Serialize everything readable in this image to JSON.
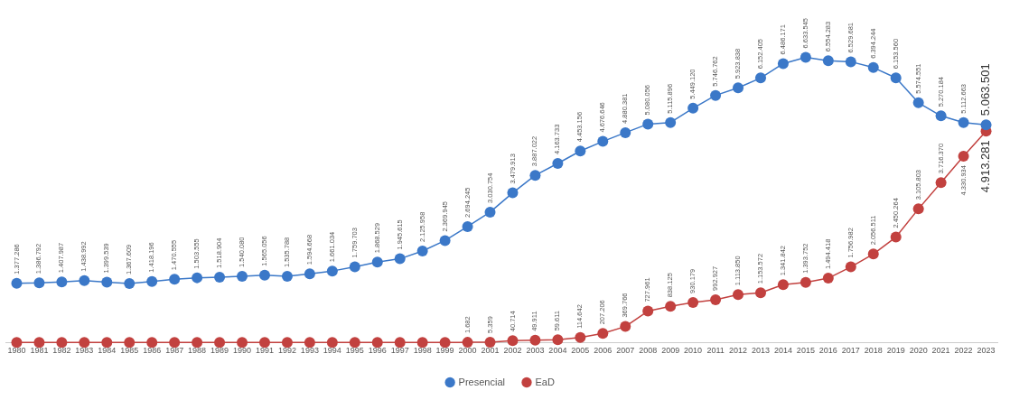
{
  "chart_data": {
    "type": "line",
    "categories": [
      "1980",
      "1981",
      "1982",
      "1983",
      "1984",
      "1985",
      "1986",
      "1987",
      "1988",
      "1989",
      "1990",
      "1991",
      "1992",
      "1993",
      "1994",
      "1995",
      "1996",
      "1997",
      "1998",
      "1999",
      "2000",
      "2001",
      "2002",
      "2003",
      "2004",
      "2005",
      "2006",
      "2007",
      "2008",
      "2009",
      "2010",
      "2011",
      "2012",
      "2013",
      "2014",
      "2015",
      "2016",
      "2017",
      "2018",
      "2019",
      "2020",
      "2021",
      "2022",
      "2023"
    ],
    "tick_labels": "x",
    "grid": false,
    "legend": "bottom",
    "marker": "circle",
    "line_style": "solid",
    "series": [
      {
        "name": "Presencial",
        "color": "#3b78c8",
        "values": [
          1377286,
          1386792,
          1407987,
          1438992,
          1399539,
          1367609,
          1418196,
          1470555,
          1503555,
          1518904,
          1540080,
          1565056,
          1535788,
          1594668,
          1661034,
          1759703,
          1868529,
          1945615,
          2125958,
          2369945,
          2694245,
          3030754,
          3479913,
          3887022,
          4163733,
          4453156,
          4676646,
          4880381,
          5080056,
          5115896,
          5449120,
          5746762,
          5923838,
          6152405,
          6486171,
          6633545,
          6554283,
          6529681,
          6394244,
          6153560,
          5574551,
          5270184,
          5112663,
          5063501
        ],
        "value_labels": [
          "1.377.286",
          "1.386.792",
          "1.407.987",
          "1.438.992",
          "1.399.539",
          "1.367.609",
          "1.418.196",
          "1.470.555",
          "1.503.555",
          "1.518.904",
          "1.540.080",
          "1.565.056",
          "1.535.788",
          "1.594.668",
          "1.661.034",
          "1.759.703",
          "1.868.529",
          "1.945.615",
          "2.125.958",
          "2.369.945",
          "2.694.245",
          "3.030.754",
          "3.479.913",
          "3.887.022",
          "4.163.733",
          "4.453.156",
          "4.676.646",
          "4.880.381",
          "5.080.056",
          "5.115.896",
          "5.449.120",
          "5.746.762",
          "5.923.838",
          "6.152.405",
          "6.486.171",
          "6.633.545",
          "6.554.283",
          "6.529.681",
          "6.394.244",
          "6.153.560",
          "5.574.551",
          "5.270.184",
          "5.112.663",
          "5.063.501"
        ]
      },
      {
        "name": "EaD",
        "color": "#c2413f",
        "values": [
          0,
          0,
          0,
          0,
          0,
          0,
          0,
          0,
          0,
          0,
          0,
          0,
          0,
          0,
          0,
          0,
          0,
          0,
          0,
          0,
          1682,
          5359,
          40714,
          49911,
          59611,
          114642,
          207206,
          369766,
          727961,
          838125,
          930179,
          992927,
          1113850,
          1153572,
          1341842,
          1393752,
          1494418,
          1756982,
          2056511,
          2450264,
          3105803,
          3716370,
          4330934,
          4913281
        ],
        "value_labels": [
          null,
          null,
          null,
          null,
          null,
          null,
          null,
          null,
          null,
          null,
          null,
          null,
          null,
          null,
          null,
          null,
          null,
          null,
          null,
          null,
          "1.682",
          "5.359",
          "40.714",
          "49.911",
          "59.611",
          "114.642",
          "207.206",
          "369.766",
          "727.961",
          "838.125",
          "930.179",
          "992.927",
          "1.113.850",
          "1.153.572",
          "1.341.842",
          "1.393.752",
          "1.494.418",
          "1.756.982",
          "2.056.511",
          "2.450.264",
          "3.105.803",
          "3.716.370",
          "4.330.934",
          "4.913.281"
        ]
      }
    ]
  }
}
